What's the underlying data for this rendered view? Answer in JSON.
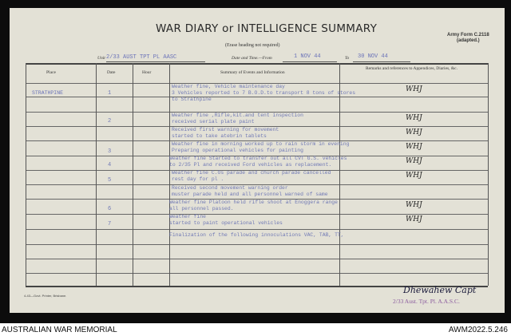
{
  "header": {
    "title": "WAR DIARY or INTELLIGENCE SUMMARY",
    "subtitle": "(Erase heading not required)",
    "form_id": "Army Form C.2118",
    "form_note": "(adapted.)",
    "unit_label": "Unit",
    "unit": "2/33 AUST TPT PL AASC",
    "date_label": "Date and Time.—From",
    "from": "1 NOV 44",
    "to_label": "To",
    "to": "30 NOV 44"
  },
  "columns": [
    "Place",
    "Date",
    "Hour",
    "Summary of Events and Information",
    "Remarks and references to Appendices, Diaries, &c."
  ],
  "entries": [
    {
      "place": "STRATHPINE",
      "date": "1",
      "lines": [
        "Weather fine, Vehicle maintenance day",
        "3 Vehicles reported to 7 B.O.D.to transport 8 tons of stores",
        "to Strathpine"
      ],
      "remark": "WHJ"
    },
    {
      "place": "",
      "date": "2",
      "lines": [
        "Weather fine ,Rifle,kit.and tent inspection",
        "received serial plate paint"
      ],
      "remark": "WHJ"
    },
    {
      "place": "",
      "date": "",
      "lines": [
        "Received first warning for movement",
        "started to take atebrin tablets"
      ],
      "remark": "WHJ"
    },
    {
      "place": "",
      "date": "3",
      "lines": [
        "Weather fine in morning worked up to rain storm in evening",
        "Preparing operational vehicles for painting"
      ],
      "remark": "WHJ"
    },
    {
      "place": "",
      "date": "4",
      "lines": [
        "Weather fine   Started to transfer out all CVT G.S. vehicles",
        "to 2/35 Pl and received Ford vehicles as replacement."
      ],
      "remark": "WHJ"
    },
    {
      "place": "",
      "date": "5",
      "lines": [
        "Weather fine   C.Os parade and church parade cancelled",
        "rest day for pl ."
      ],
      "remark": "WHJ"
    },
    {
      "place": "",
      "date": "",
      "lines": [
        "Received second movement warning order",
        "muster parade held and all personnel warned of same"
      ],
      "remark": ""
    },
    {
      "place": "",
      "date": "6",
      "lines": [
        "Weather fine   Platoon held rifle shoot at Enoggera range",
        "all personnel passed."
      ],
      "remark": "WHJ"
    },
    {
      "place": "",
      "date": "7",
      "lines": [
        "Weather fine",
        "started to paint operational vehicles"
      ],
      "remark": "WHJ"
    },
    {
      "place": "",
      "date": "",
      "lines": [
        "",
        "Finalization of the following innoculations VAC, TAB, TT,"
      ],
      "remark": ""
    }
  ],
  "printer": "4-43—Govt. Printer, Brisbane.",
  "signature": "Dhewahew Capt",
  "stamp": "2/33 Aust. Tpt. Pl. A.A.S.C.",
  "footer": {
    "left": "AUSTRALIAN WAR MEMORIAL",
    "right": "AWM2022.5.246"
  }
}
